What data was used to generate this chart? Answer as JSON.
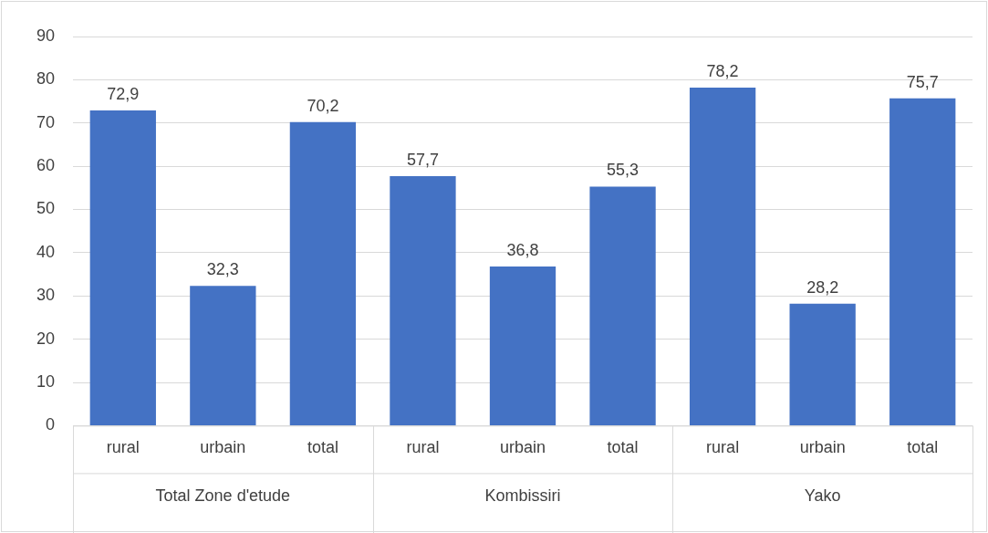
{
  "chart_data": {
    "type": "bar",
    "categories": [
      "rural",
      "urbain",
      "total",
      "rural",
      "urbain",
      "total",
      "rural",
      "urbain",
      "total"
    ],
    "values": [
      72.9,
      32.3,
      70.2,
      57.7,
      36.8,
      55.3,
      78.2,
      28.2,
      75.7
    ],
    "color": "#4472c4",
    "ylim": [
      0,
      90
    ],
    "yticks": [
      0,
      10,
      20,
      30,
      40,
      50,
      60,
      70,
      80,
      90
    ],
    "value_labels": [
      "72,9",
      "32,3",
      "70,2",
      "57,7",
      "36,8",
      "55,3",
      "78,2",
      "28,2",
      "75,7"
    ],
    "grid": "y",
    "legend": false,
    "annotations": [
      "Total Zone d'etude",
      "Kombissiri",
      "Yako"
    ]
  }
}
